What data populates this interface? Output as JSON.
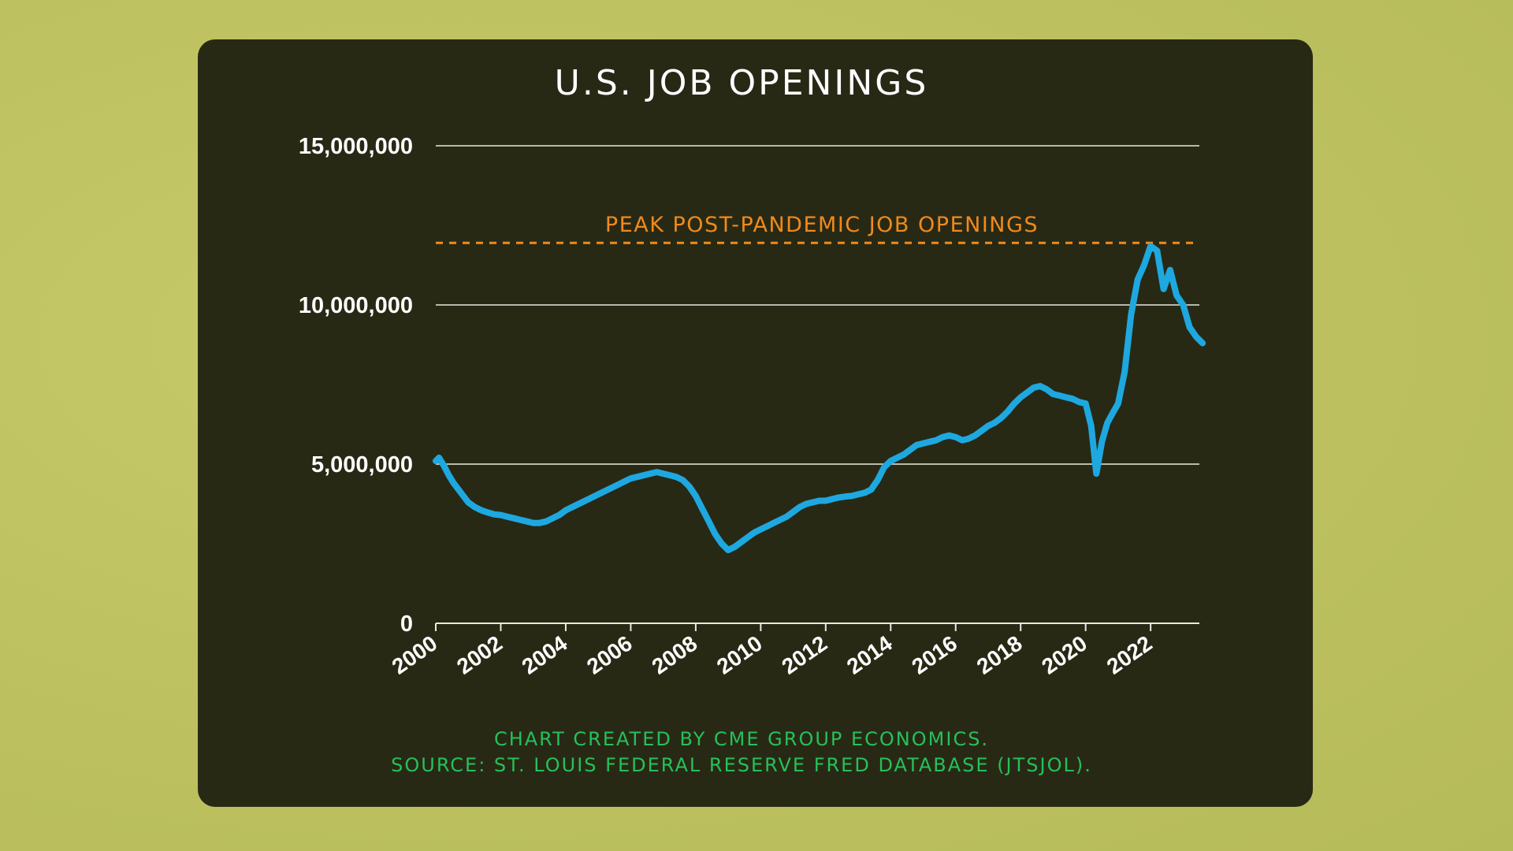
{
  "chart_data": {
    "type": "line",
    "title": "U.S. JOB OPENINGS",
    "colors": {
      "series": "#1ea8e0",
      "reference": "#f08a1c",
      "credit": "#26c05a",
      "background": "#282915"
    },
    "ylim": [
      0,
      15000000
    ],
    "xlim": [
      2000,
      2023.5
    ],
    "y_ticks": [
      {
        "value": 0,
        "label": "0"
      },
      {
        "value": 5000000,
        "label": "5,000,000"
      },
      {
        "value": 10000000,
        "label": "10,000,000"
      },
      {
        "value": 15000000,
        "label": "15,000,000"
      }
    ],
    "x_ticks": [
      {
        "value": 2000,
        "label": "2000"
      },
      {
        "value": 2002,
        "label": "2002"
      },
      {
        "value": 2004,
        "label": "2004"
      },
      {
        "value": 2006,
        "label": "2006"
      },
      {
        "value": 2008,
        "label": "2008"
      },
      {
        "value": 2010,
        "label": "2010"
      },
      {
        "value": 2012,
        "label": "2012"
      },
      {
        "value": 2014,
        "label": "2014"
      },
      {
        "value": 2016,
        "label": "2016"
      },
      {
        "value": 2018,
        "label": "2018"
      },
      {
        "value": 2020,
        "label": "2020"
      },
      {
        "value": 2022,
        "label": "2022"
      }
    ],
    "grid": true,
    "reference_line": {
      "value": 11950000,
      "label": "PEAK POST-PANDEMIC JOB OPENINGS"
    },
    "series": [
      {
        "x": [
          2000.0,
          2000.1,
          2000.25,
          2000.4,
          2000.55,
          2000.7,
          2000.85,
          2001.0,
          2001.2,
          2001.4,
          2001.6,
          2001.8,
          2002.0,
          2002.2,
          2002.4,
          2002.6,
          2002.8,
          2003.0,
          2003.2,
          2003.4,
          2003.6,
          2003.8,
          2004.0,
          2004.2,
          2004.4,
          2004.6,
          2004.8,
          2005.0,
          2005.2,
          2005.4,
          2005.6,
          2005.8,
          2006.0,
          2006.2,
          2006.4,
          2006.6,
          2006.8,
          2007.0,
          2007.2,
          2007.4,
          2007.6,
          2007.8,
          2008.0,
          2008.2,
          2008.4,
          2008.6,
          2008.8,
          2009.0,
          2009.2,
          2009.4,
          2009.6,
          2009.8,
          2010.0,
          2010.2,
          2010.4,
          2010.6,
          2010.8,
          2011.0,
          2011.2,
          2011.4,
          2011.6,
          2011.8,
          2012.0,
          2012.2,
          2012.4,
          2012.6,
          2012.8,
          2013.0,
          2013.2,
          2013.4,
          2013.6,
          2013.8,
          2014.0,
          2014.2,
          2014.4,
          2014.6,
          2014.8,
          2015.0,
          2015.2,
          2015.4,
          2015.6,
          2015.8,
          2016.0,
          2016.2,
          2016.4,
          2016.6,
          2016.8,
          2017.0,
          2017.2,
          2017.4,
          2017.6,
          2017.8,
          2018.0,
          2018.2,
          2018.4,
          2018.6,
          2018.8,
          2019.0,
          2019.2,
          2019.4,
          2019.6,
          2019.8,
          2020.0,
          2020.17,
          2020.33,
          2020.5,
          2020.67,
          2020.83,
          2021.0,
          2021.2,
          2021.4,
          2021.6,
          2021.8,
          2022.0,
          2022.2,
          2022.4,
          2022.6,
          2022.8,
          2023.0,
          2023.2,
          2023.4,
          2023.6
        ],
        "values": [
          5100000,
          5200000,
          4950000,
          4650000,
          4400000,
          4200000,
          4000000,
          3800000,
          3650000,
          3550000,
          3480000,
          3420000,
          3400000,
          3350000,
          3300000,
          3250000,
          3200000,
          3150000,
          3150000,
          3200000,
          3300000,
          3400000,
          3550000,
          3650000,
          3750000,
          3850000,
          3950000,
          4050000,
          4150000,
          4250000,
          4350000,
          4450000,
          4550000,
          4600000,
          4650000,
          4700000,
          4750000,
          4700000,
          4650000,
          4600000,
          4500000,
          4300000,
          4000000,
          3600000,
          3200000,
          2800000,
          2500000,
          2300000,
          2400000,
          2550000,
          2700000,
          2850000,
          2950000,
          3050000,
          3150000,
          3250000,
          3350000,
          3500000,
          3650000,
          3750000,
          3800000,
          3850000,
          3850000,
          3900000,
          3950000,
          3980000,
          4000000,
          4050000,
          4100000,
          4200000,
          4500000,
          4900000,
          5100000,
          5200000,
          5300000,
          5450000,
          5600000,
          5650000,
          5700000,
          5750000,
          5850000,
          5900000,
          5850000,
          5750000,
          5800000,
          5900000,
          6050000,
          6200000,
          6300000,
          6450000,
          6650000,
          6900000,
          7100000,
          7250000,
          7400000,
          7450000,
          7350000,
          7200000,
          7150000,
          7100000,
          7050000,
          6950000,
          6900000,
          6200000,
          4700000,
          5700000,
          6300000,
          6600000,
          6900000,
          7900000,
          9700000,
          10800000,
          11250000,
          11850000,
          11700000,
          10500000,
          11100000,
          10300000,
          10000000,
          9300000,
          9000000,
          8800000
        ],
        "value_unit": "job openings"
      }
    ]
  },
  "credits": {
    "line1": "CHART CREATED BY CME GROUP ECONOMICS.",
    "line2": "SOURCE: ST. LOUIS FEDERAL RESERVE FRED DATABASE (JTSJOL)."
  }
}
